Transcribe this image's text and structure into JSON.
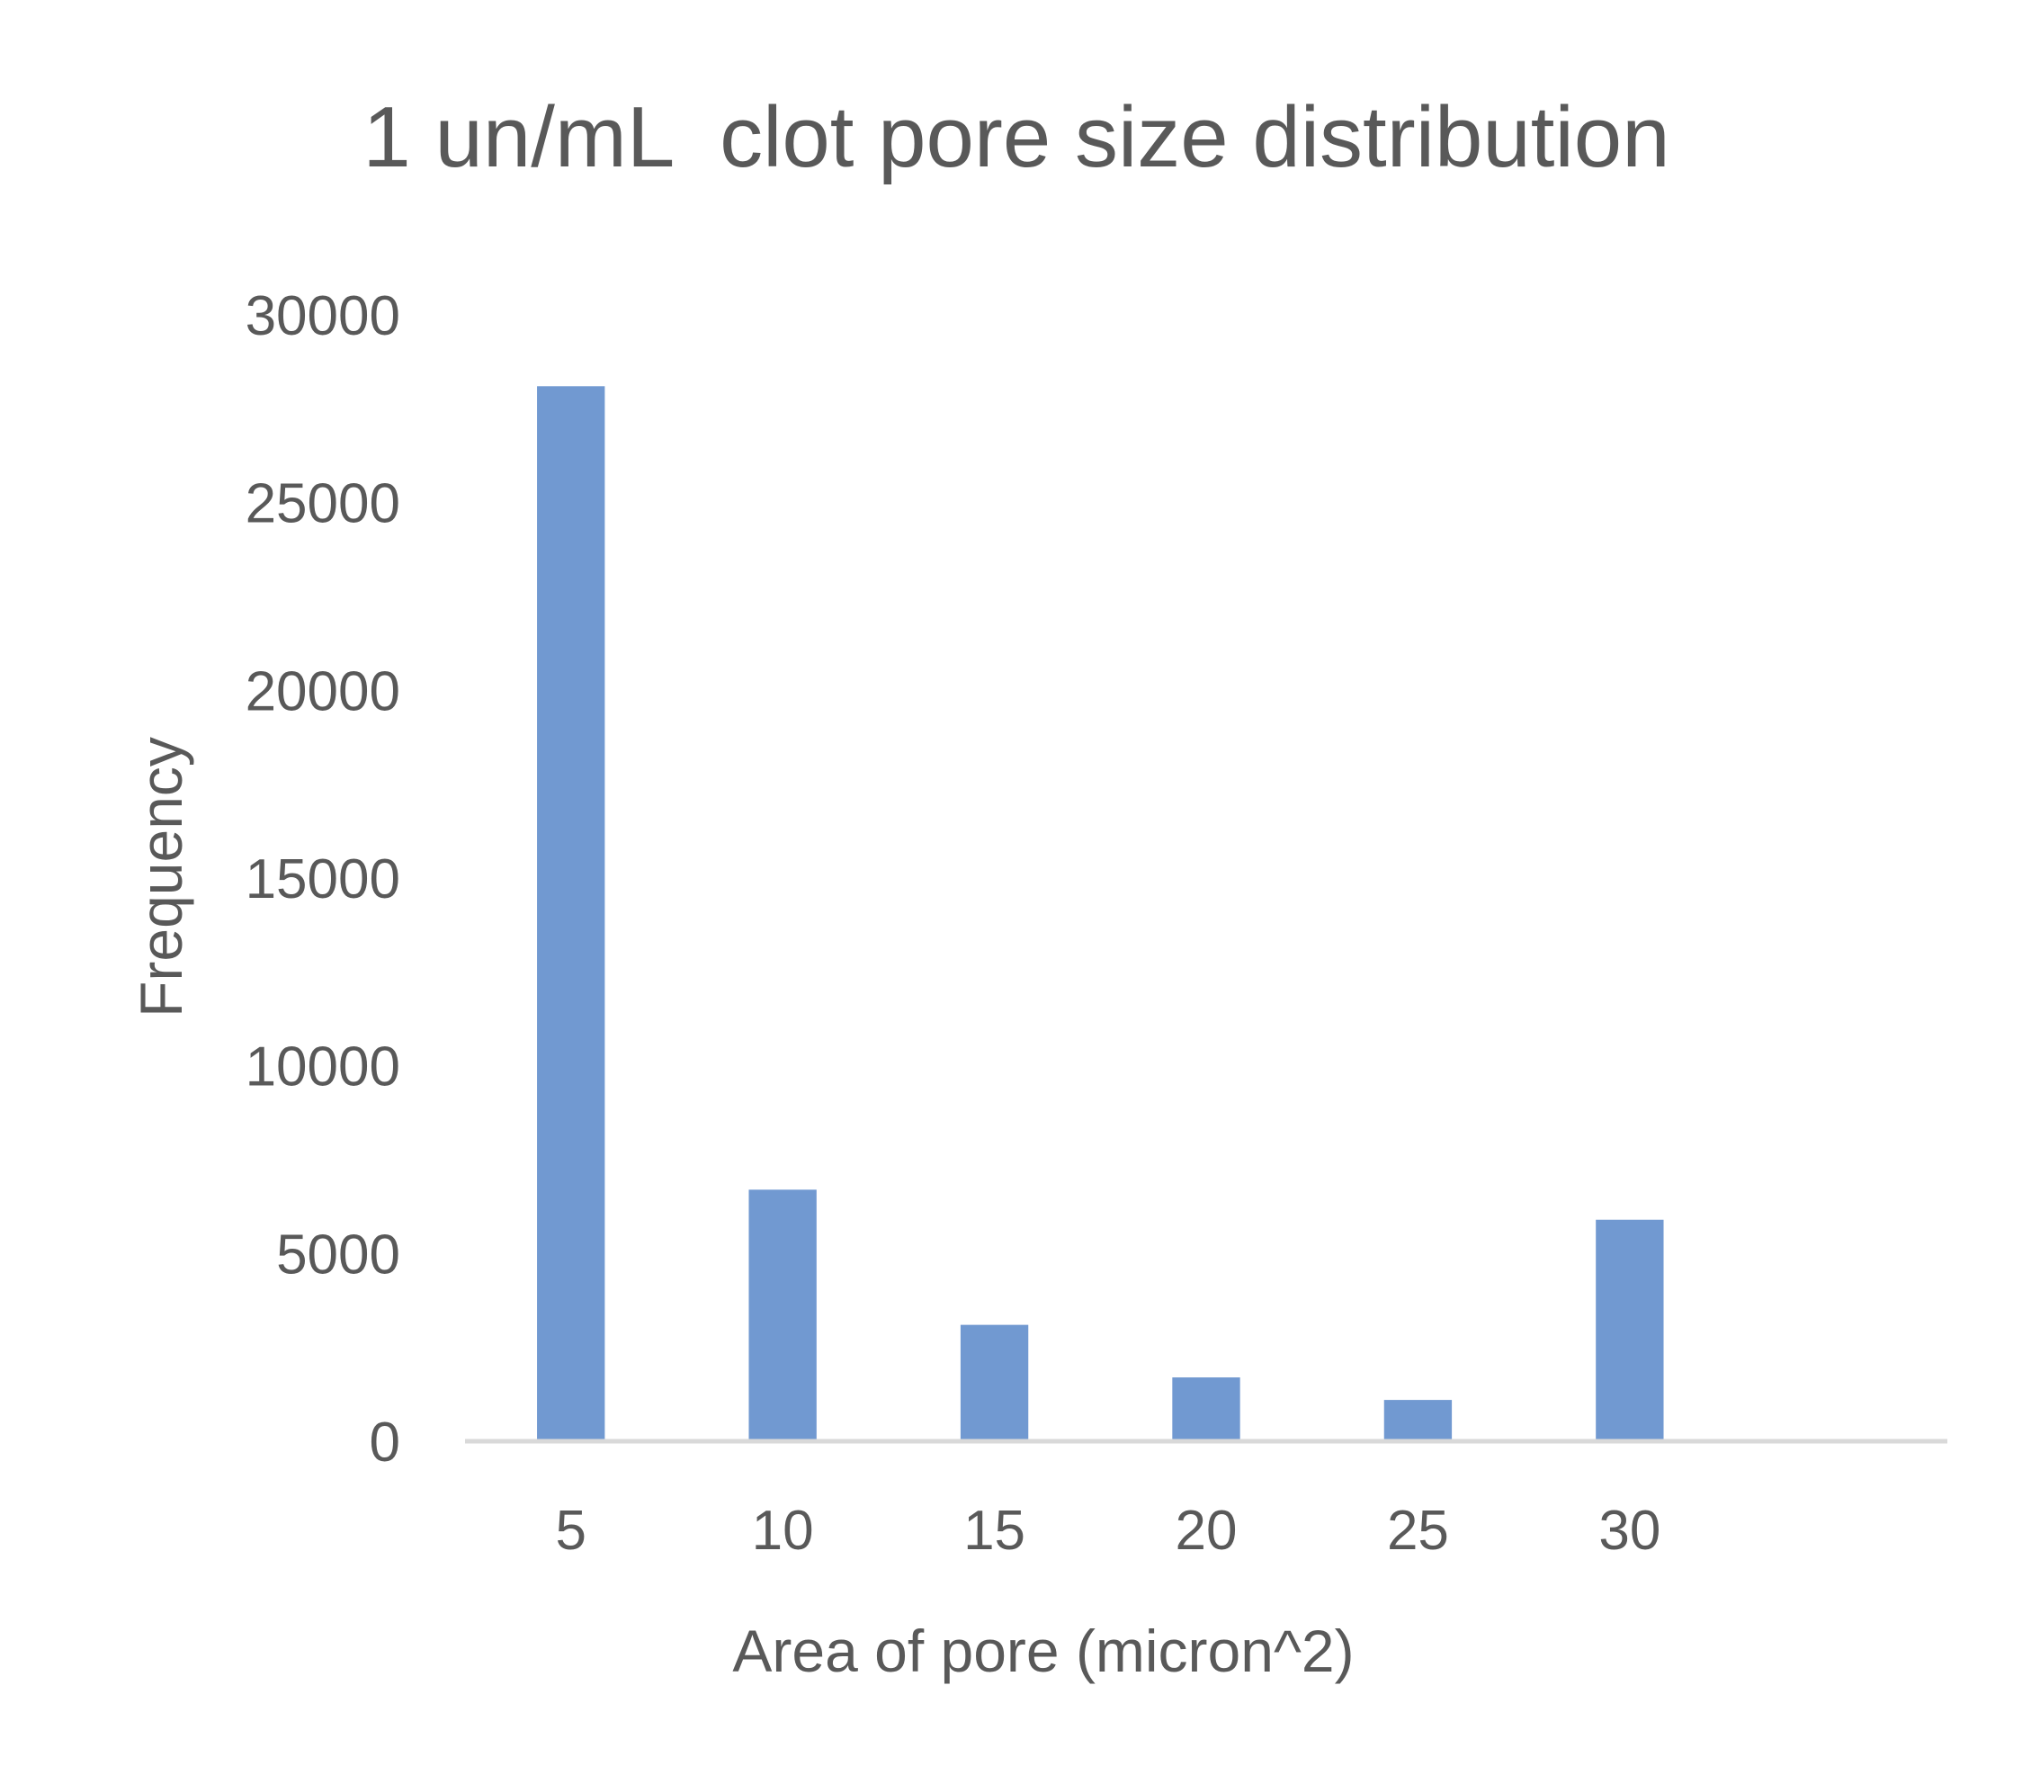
{
  "chart_data": {
    "type": "bar",
    "title": "1 un/mL  clot pore size distribution",
    "xlabel": "Area of pore (micron^2)",
    "ylabel": "Frequency",
    "categories": [
      "5",
      "10",
      "15",
      "20",
      "25",
      "30",
      ""
    ],
    "values": [
      28100,
      6700,
      3100,
      1700,
      1100,
      5900,
      null
    ],
    "ylim": [
      0,
      30000
    ],
    "yticks": [
      "0",
      "5000",
      "10000",
      "15000",
      "20000",
      "25000",
      "30000"
    ],
    "grid": false,
    "legend": "none",
    "bar_color": "#7199D1",
    "axis_color": "#D9D9D9",
    "text_color": "#595959"
  }
}
